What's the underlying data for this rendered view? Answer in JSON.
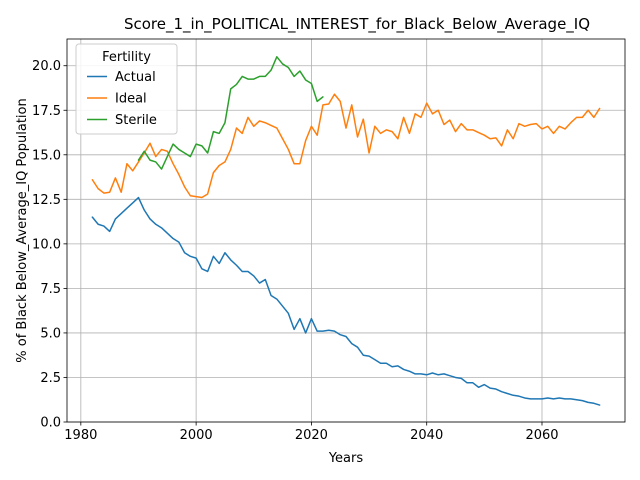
{
  "chart_data": {
    "type": "line",
    "title": "Score_1_in_POLITICAL_INTEREST_for_Black_Below_Average_IQ",
    "xlabel": "Years",
    "ylabel": "% of Black Below_Average_IQ Population",
    "xlim": [
      1977.6,
      2074.4
    ],
    "ylim": [
      0.0,
      21.5
    ],
    "xticks": [
      1980,
      2000,
      2020,
      2040,
      2060
    ],
    "yticks": [
      0.0,
      2.5,
      5.0,
      7.5,
      10.0,
      12.5,
      15.0,
      17.5,
      20.0
    ],
    "ytick_labels": [
      "0.0",
      "2.5",
      "5.0",
      "7.5",
      "10.0",
      "12.5",
      "15.0",
      "17.5",
      "20.0"
    ],
    "grid": true,
    "legend": {
      "title": "Fertility",
      "location": "upper left"
    },
    "series": [
      {
        "name": "Actual",
        "color": "#1f77b4",
        "x": [
          1982,
          1983,
          1984,
          1985,
          1986,
          1987,
          1988,
          1989,
          1990,
          1991,
          1992,
          1993,
          1994,
          1995,
          1996,
          1997,
          1998,
          1999,
          2000,
          2001,
          2002,
          2003,
          2004,
          2005,
          2006,
          2007,
          2008,
          2009,
          2010,
          2011,
          2012,
          2013,
          2014,
          2015,
          2016,
          2017,
          2018,
          2019,
          2020,
          2021,
          2022,
          2023,
          2024,
          2025,
          2026,
          2027,
          2028,
          2029,
          2030,
          2031,
          2032,
          2033,
          2034,
          2035,
          2036,
          2037,
          2038,
          2039,
          2040,
          2041,
          2042,
          2043,
          2044,
          2045,
          2046,
          2047,
          2048,
          2049,
          2050,
          2051,
          2052,
          2053,
          2054,
          2055,
          2056,
          2057,
          2058,
          2059,
          2060,
          2061,
          2062,
          2063,
          2064,
          2065,
          2066,
          2067,
          2068,
          2069,
          2070
        ],
        "y": [
          11.5,
          11.1,
          11.0,
          10.7,
          11.4,
          11.7,
          12.0,
          12.3,
          12.6,
          11.9,
          11.4,
          11.1,
          10.9,
          10.6,
          10.3,
          10.1,
          9.5,
          9.3,
          9.2,
          8.6,
          8.45,
          9.3,
          8.9,
          9.5,
          9.1,
          8.8,
          8.45,
          8.45,
          8.2,
          7.8,
          8.0,
          7.1,
          6.9,
          6.5,
          6.1,
          5.2,
          5.8,
          5.0,
          5.8,
          5.1,
          5.1,
          5.15,
          5.1,
          4.9,
          4.8,
          4.4,
          4.2,
          3.75,
          3.7,
          3.5,
          3.3,
          3.3,
          3.1,
          3.15,
          2.95,
          2.85,
          2.7,
          2.7,
          2.65,
          2.75,
          2.65,
          2.7,
          2.6,
          2.5,
          2.45,
          2.2,
          2.2,
          1.95,
          2.1,
          1.9,
          1.85,
          1.7,
          1.6,
          1.5,
          1.45,
          1.35,
          1.3,
          1.3,
          1.3,
          1.35,
          1.3,
          1.35,
          1.3,
          1.3,
          1.25,
          1.2,
          1.1,
          1.05,
          0.95
        ]
      },
      {
        "name": "Ideal",
        "color": "#ff7f0e",
        "x": [
          1982,
          1983,
          1984,
          1985,
          1986,
          1987,
          1988,
          1989,
          1990,
          1991,
          1992,
          1993,
          1994,
          1995,
          1996,
          1997,
          1998,
          1999,
          2000,
          2001,
          2002,
          2003,
          2004,
          2005,
          2006,
          2007,
          2008,
          2009,
          2010,
          2011,
          2012,
          2013,
          2014,
          2015,
          2016,
          2017,
          2018,
          2019,
          2020,
          2021,
          2022,
          2023,
          2024,
          2025,
          2026,
          2027,
          2028,
          2029,
          2030,
          2031,
          2032,
          2033,
          2034,
          2035,
          2036,
          2037,
          2038,
          2039,
          2040,
          2041,
          2042,
          2043,
          2044,
          2045,
          2046,
          2047,
          2048,
          2049,
          2050,
          2051,
          2052,
          2053,
          2054,
          2055,
          2056,
          2057,
          2058,
          2059,
          2060,
          2061,
          2062,
          2063,
          2064,
          2065,
          2066,
          2067,
          2068,
          2069,
          2070
        ],
        "y": [
          13.6,
          13.1,
          12.85,
          12.9,
          13.7,
          12.9,
          14.5,
          14.1,
          14.6,
          15.1,
          15.65,
          14.9,
          15.3,
          15.2,
          14.5,
          13.9,
          13.2,
          12.7,
          12.65,
          12.6,
          12.8,
          14.0,
          14.4,
          14.6,
          15.3,
          16.5,
          16.2,
          17.1,
          16.6,
          16.9,
          16.8,
          16.65,
          16.5,
          15.9,
          15.3,
          14.5,
          14.5,
          15.8,
          16.6,
          16.1,
          17.8,
          17.85,
          18.4,
          18.0,
          16.5,
          17.8,
          16.0,
          17.0,
          15.1,
          16.6,
          16.2,
          16.4,
          16.3,
          15.9,
          17.1,
          16.2,
          17.3,
          17.1,
          17.9,
          17.3,
          17.5,
          16.7,
          16.95,
          16.3,
          16.75,
          16.4,
          16.4,
          16.25,
          16.1,
          15.9,
          15.95,
          15.5,
          16.4,
          15.9,
          16.75,
          16.6,
          16.7,
          16.75,
          16.45,
          16.6,
          16.2,
          16.6,
          16.45,
          16.8,
          17.1,
          17.1,
          17.5,
          17.1,
          17.6
        ]
      },
      {
        "name": "Sterile",
        "color": "#2ca02c",
        "x": [
          1990,
          1991,
          1992,
          1993,
          1994,
          1995,
          1996,
          1997,
          1998,
          1999,
          2000,
          2001,
          2002,
          2003,
          2004,
          2005,
          2006,
          2007,
          2008,
          2009,
          2010,
          2011,
          2012,
          2013,
          2014,
          2015,
          2016,
          2017,
          2018,
          2019,
          2020,
          2021,
          2022
        ],
        "y": [
          14.7,
          15.2,
          14.7,
          14.6,
          14.2,
          14.9,
          15.6,
          15.3,
          15.1,
          14.9,
          15.6,
          15.5,
          15.1,
          16.3,
          16.2,
          16.8,
          18.7,
          18.95,
          19.4,
          19.25,
          19.25,
          19.4,
          19.4,
          19.75,
          20.5,
          20.1,
          19.9,
          19.4,
          19.7,
          19.2,
          19.0,
          18.0,
          18.25
        ]
      }
    ]
  }
}
